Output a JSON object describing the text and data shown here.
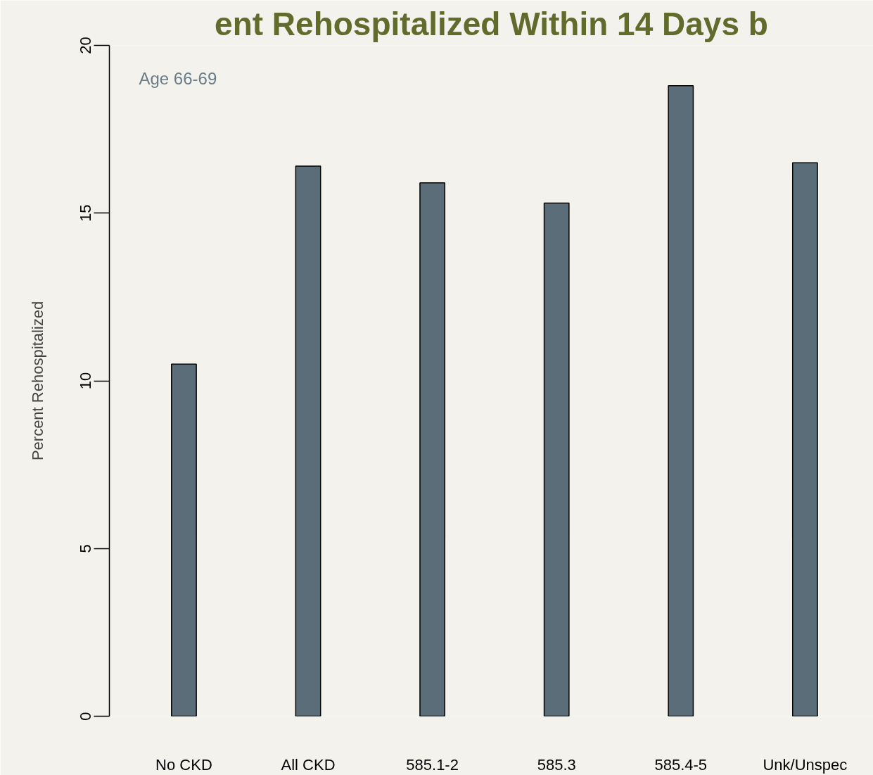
{
  "chart_data": {
    "type": "bar",
    "title": "ent Rehospitalized Within 14 Days b",
    "ylabel": "Percent Rehospitalized",
    "annotations": [
      "Age 66-69"
    ],
    "categories": [
      "No CKD",
      "All CKD",
      "585.1-2",
      "585.3",
      "585.4-5",
      "Unk/Unspec"
    ],
    "values": [
      10.5,
      16.4,
      15.9,
      15.3,
      18.8,
      16.5
    ],
    "color": "#5b6d79",
    "ylim": [
      0,
      20
    ],
    "yticks": [
      0,
      5,
      10,
      15,
      20
    ],
    "grid": false
  }
}
